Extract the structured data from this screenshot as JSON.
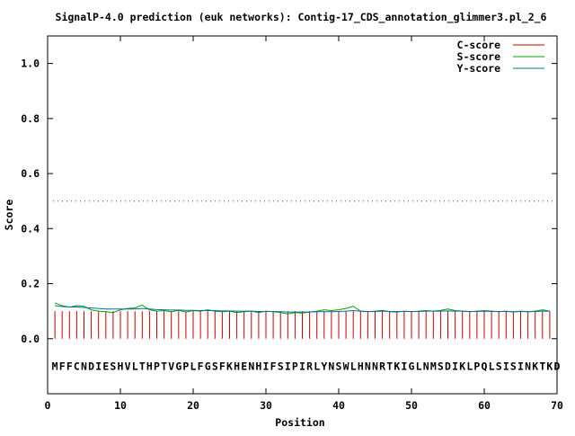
{
  "chart_data": {
    "type": "line",
    "title": "SignalP-4.0 prediction (euk networks): Contig-17_CDS_annotation_glimmer3.pl_2_6",
    "xlabel": "Position",
    "ylabel": "Score",
    "xlim": [
      0,
      70
    ],
    "ylim": [
      -0.2,
      1.1
    ],
    "x_ticks": [
      "0",
      "10",
      "20",
      "30",
      "40",
      "50",
      "60",
      "70"
    ],
    "y_ticks": [
      "0.0",
      "0.2",
      "0.4",
      "0.6",
      "0.8",
      "1.0"
    ],
    "y_tick_values": [
      0.0,
      0.2,
      0.4,
      0.6,
      0.8,
      1.0
    ],
    "x_tick_values": [
      0,
      10,
      20,
      30,
      40,
      50,
      60,
      70
    ],
    "threshold": 0.5,
    "sequence": "MFFCNDIESHVLTHPTVGPLFGSFKHENHIFSIPIRLYNSWLHNNRTKIGLNMSDIKLPQLSISINKTKD",
    "grid": false,
    "legend_position": "top-right",
    "colors": {
      "c_score": "#cc0000",
      "s_score": "#00a000",
      "y_score": "#0070a0",
      "threshold": "#cc00cc"
    },
    "series": [
      {
        "name": "C-score",
        "values": [
          0.1,
          0.1,
          0.1,
          0.1,
          0.1,
          0.1,
          0.1,
          0.1,
          0.1,
          0.1,
          0.1,
          0.1,
          0.1,
          0.1,
          0.1,
          0.1,
          0.1,
          0.1,
          0.1,
          0.1,
          0.1,
          0.1,
          0.1,
          0.1,
          0.1,
          0.1,
          0.1,
          0.1,
          0.1,
          0.1,
          0.1,
          0.1,
          0.1,
          0.1,
          0.1,
          0.1,
          0.1,
          0.1,
          0.1,
          0.1,
          0.1,
          0.1,
          0.1,
          0.1,
          0.1,
          0.1,
          0.1,
          0.1,
          0.1,
          0.1,
          0.1,
          0.1,
          0.1,
          0.1,
          0.1,
          0.1,
          0.1,
          0.1,
          0.1,
          0.1,
          0.1,
          0.1,
          0.1,
          0.1,
          0.1,
          0.1,
          0.1,
          0.1,
          0.1
        ]
      },
      {
        "name": "S-score",
        "values": [
          0.13,
          0.12,
          0.115,
          0.12,
          0.118,
          0.105,
          0.1,
          0.098,
          0.095,
          0.105,
          0.11,
          0.112,
          0.122,
          0.105,
          0.1,
          0.102,
          0.098,
          0.103,
          0.097,
          0.102,
          0.1,
          0.105,
          0.1,
          0.098,
          0.1,
          0.095,
          0.098,
          0.1,
          0.095,
          0.1,
          0.098,
          0.095,
          0.09,
          0.095,
          0.093,
          0.097,
          0.1,
          0.105,
          0.102,
          0.105,
          0.11,
          0.118,
          0.1,
          0.098,
          0.1,
          0.103,
          0.098,
          0.097,
          0.1,
          0.098,
          0.1,
          0.102,
          0.1,
          0.103,
          0.108,
          0.102,
          0.1,
          0.098,
          0.1,
          0.102,
          0.1,
          0.098,
          0.1,
          0.097,
          0.1,
          0.098,
          0.1,
          0.105,
          0.1
        ]
      },
      {
        "name": "Y-score",
        "values": [
          0.12,
          0.117,
          0.115,
          0.115,
          0.113,
          0.112,
          0.11,
          0.108,
          0.108,
          0.108,
          0.108,
          0.108,
          0.11,
          0.108,
          0.106,
          0.105,
          0.104,
          0.104,
          0.103,
          0.103,
          0.102,
          0.102,
          0.102,
          0.101,
          0.101,
          0.1,
          0.1,
          0.1,
          0.099,
          0.099,
          0.099,
          0.098,
          0.097,
          0.097,
          0.097,
          0.097,
          0.098,
          0.098,
          0.098,
          0.099,
          0.1,
          0.102,
          0.1,
          0.099,
          0.099,
          0.1,
          0.099,
          0.099,
          0.099,
          0.099,
          0.099,
          0.1,
          0.1,
          0.1,
          0.101,
          0.1,
          0.1,
          0.099,
          0.099,
          0.1,
          0.099,
          0.099,
          0.099,
          0.098,
          0.099,
          0.098,
          0.099,
          0.1,
          0.1
        ]
      }
    ]
  }
}
